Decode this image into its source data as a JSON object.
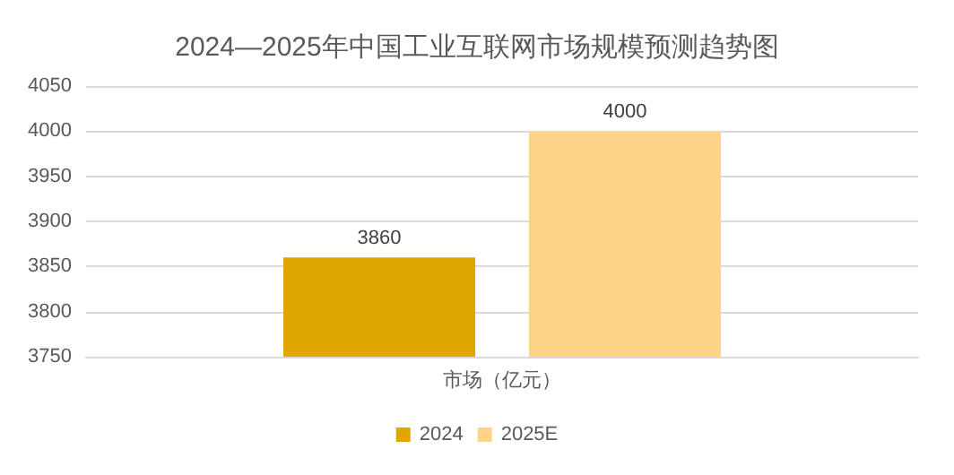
{
  "chart_data": {
    "type": "bar",
    "title": "2024—2025年中国工业互联网市场规模预测趋势图",
    "categories": [
      "市场（亿元）"
    ],
    "series": [
      {
        "name": "2024",
        "color": "#dfa800",
        "values": [
          3860
        ]
      },
      {
        "name": "2025E",
        "color": "#ffd38a",
        "values": [
          4000
        ]
      }
    ],
    "ylim": [
      3750,
      4050
    ],
    "yticks": [
      3750,
      3800,
      3850,
      3900,
      3950,
      4000,
      4050
    ],
    "grid": "y",
    "legend": "bottom",
    "data_labels": true
  }
}
